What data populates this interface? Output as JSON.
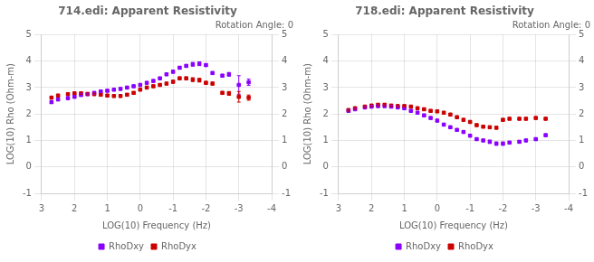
{
  "chart_data": [
    {
      "type": "scatter",
      "title": "714.edi: Apparent Resistivity",
      "annotation": "Rotation Angle: 0",
      "xlabel": "LOG(10) Frequency (Hz)",
      "ylabel": "LOG(10) Rho (Ohm-m)",
      "xlim": [
        3,
        -4
      ],
      "ylim": [
        -1,
        5
      ],
      "xticks": [
        3,
        2,
        1,
        0,
        -1,
        -2,
        -3,
        -4
      ],
      "yticks": [
        -1,
        0,
        1,
        2,
        3,
        4,
        5
      ],
      "y2lim": [
        -1,
        5
      ],
      "y2ticks": [
        -1,
        0,
        1,
        2,
        3,
        4,
        5
      ],
      "grid": true,
      "legend": "bottom",
      "x": [
        2.7,
        2.5,
        2.2,
        2.0,
        1.8,
        1.6,
        1.4,
        1.2,
        1.0,
        0.8,
        0.6,
        0.4,
        0.2,
        0.0,
        -0.2,
        -0.4,
        -0.6,
        -0.8,
        -1.0,
        -1.2,
        -1.4,
        -1.6,
        -1.8,
        -2.0,
        -2.2,
        -2.5,
        -2.7,
        -3.0,
        -3.3
      ],
      "series": [
        {
          "name": "RhoDxy",
          "color": "#8B00FF",
          "marker": "square",
          "values": [
            2.45,
            2.55,
            2.6,
            2.65,
            2.72,
            2.75,
            2.8,
            2.85,
            2.88,
            2.92,
            2.95,
            3.0,
            3.05,
            3.1,
            3.18,
            3.25,
            3.35,
            3.5,
            3.6,
            3.75,
            3.82,
            3.88,
            3.9,
            3.85,
            3.55,
            3.45,
            3.5,
            3.1,
            3.2
          ],
          "errors": [
            0.05,
            0.04,
            0.04,
            0.04,
            0.04,
            0.04,
            0.04,
            0.04,
            0.04,
            0.04,
            0.04,
            0.04,
            0.04,
            0.04,
            0.04,
            0.04,
            0.04,
            0.04,
            0.05,
            0.05,
            0.05,
            0.07,
            0.07,
            0.05,
            0.05,
            0.05,
            0.07,
            0.35,
            0.12
          ]
        },
        {
          "name": "RhoDyx",
          "color": "#CC0000",
          "marker": "square",
          "values": [
            2.62,
            2.7,
            2.75,
            2.78,
            2.78,
            2.76,
            2.75,
            2.73,
            2.7,
            2.68,
            2.68,
            2.73,
            2.8,
            2.92,
            3.0,
            3.05,
            3.1,
            3.15,
            3.22,
            3.35,
            3.35,
            3.3,
            3.28,
            3.18,
            3.15,
            2.8,
            2.78,
            2.65,
            2.62
          ],
          "errors": [
            0.05,
            0.04,
            0.04,
            0.04,
            0.04,
            0.04,
            0.04,
            0.04,
            0.04,
            0.04,
            0.04,
            0.04,
            0.04,
            0.04,
            0.04,
            0.04,
            0.04,
            0.04,
            0.05,
            0.05,
            0.05,
            0.07,
            0.07,
            0.05,
            0.05,
            0.05,
            0.07,
            0.2,
            0.1
          ]
        }
      ]
    },
    {
      "type": "scatter",
      "title": "718.edi: Apparent Resistivity",
      "annotation": "Rotation Angle: 0",
      "xlabel": "LOG(10) Frequency (Hz)",
      "ylabel": "LOG(10) Rho (Ohm-m)",
      "xlim": [
        3,
        -4
      ],
      "ylim": [
        -1,
        5
      ],
      "xticks": [
        3,
        2,
        1,
        0,
        -1,
        -2,
        -3,
        -4
      ],
      "yticks": [
        -1,
        0,
        1,
        2,
        3,
        4,
        5
      ],
      "y2lim": [
        -1,
        5
      ],
      "y2ticks": [
        -1,
        0,
        1,
        2,
        3,
        4,
        5
      ],
      "grid": true,
      "legend": "bottom",
      "x": [
        2.7,
        2.5,
        2.2,
        2.0,
        1.8,
        1.6,
        1.4,
        1.2,
        1.0,
        0.8,
        0.6,
        0.4,
        0.2,
        0.0,
        -0.2,
        -0.4,
        -0.6,
        -0.8,
        -1.0,
        -1.2,
        -1.4,
        -1.6,
        -1.8,
        -2.0,
        -2.2,
        -2.5,
        -2.7,
        -3.0,
        -3.3
      ],
      "series": [
        {
          "name": "RhoDxy",
          "color": "#8B00FF",
          "marker": "square",
          "values": [
            2.12,
            2.18,
            2.25,
            2.28,
            2.3,
            2.3,
            2.28,
            2.25,
            2.22,
            2.12,
            2.05,
            1.95,
            1.85,
            1.75,
            1.6,
            1.5,
            1.4,
            1.32,
            1.18,
            1.05,
            1.0,
            0.95,
            0.88,
            0.88,
            0.92,
            0.95,
            1.0,
            1.05,
            1.2
          ],
          "errors": [
            0.04,
            0.04,
            0.04,
            0.04,
            0.04,
            0.04,
            0.04,
            0.04,
            0.04,
            0.04,
            0.04,
            0.04,
            0.04,
            0.04,
            0.04,
            0.04,
            0.04,
            0.04,
            0.04,
            0.04,
            0.04,
            0.06,
            0.06,
            0.06,
            0.04,
            0.04,
            0.04,
            0.04,
            0.04
          ]
        },
        {
          "name": "RhoDyx",
          "color": "#CC0000",
          "marker": "square",
          "values": [
            2.15,
            2.22,
            2.28,
            2.32,
            2.35,
            2.35,
            2.32,
            2.3,
            2.3,
            2.28,
            2.22,
            2.18,
            2.12,
            2.1,
            2.05,
            1.98,
            1.88,
            1.78,
            1.7,
            1.58,
            1.52,
            1.5,
            1.48,
            1.78,
            1.82,
            1.82,
            1.82,
            1.85,
            1.82
          ],
          "errors": [
            0.04,
            0.04,
            0.04,
            0.04,
            0.04,
            0.04,
            0.04,
            0.04,
            0.04,
            0.04,
            0.04,
            0.04,
            0.04,
            0.04,
            0.04,
            0.04,
            0.04,
            0.04,
            0.04,
            0.04,
            0.04,
            0.04,
            0.04,
            0.04,
            0.04,
            0.04,
            0.04,
            0.04,
            0.04
          ]
        }
      ]
    }
  ]
}
